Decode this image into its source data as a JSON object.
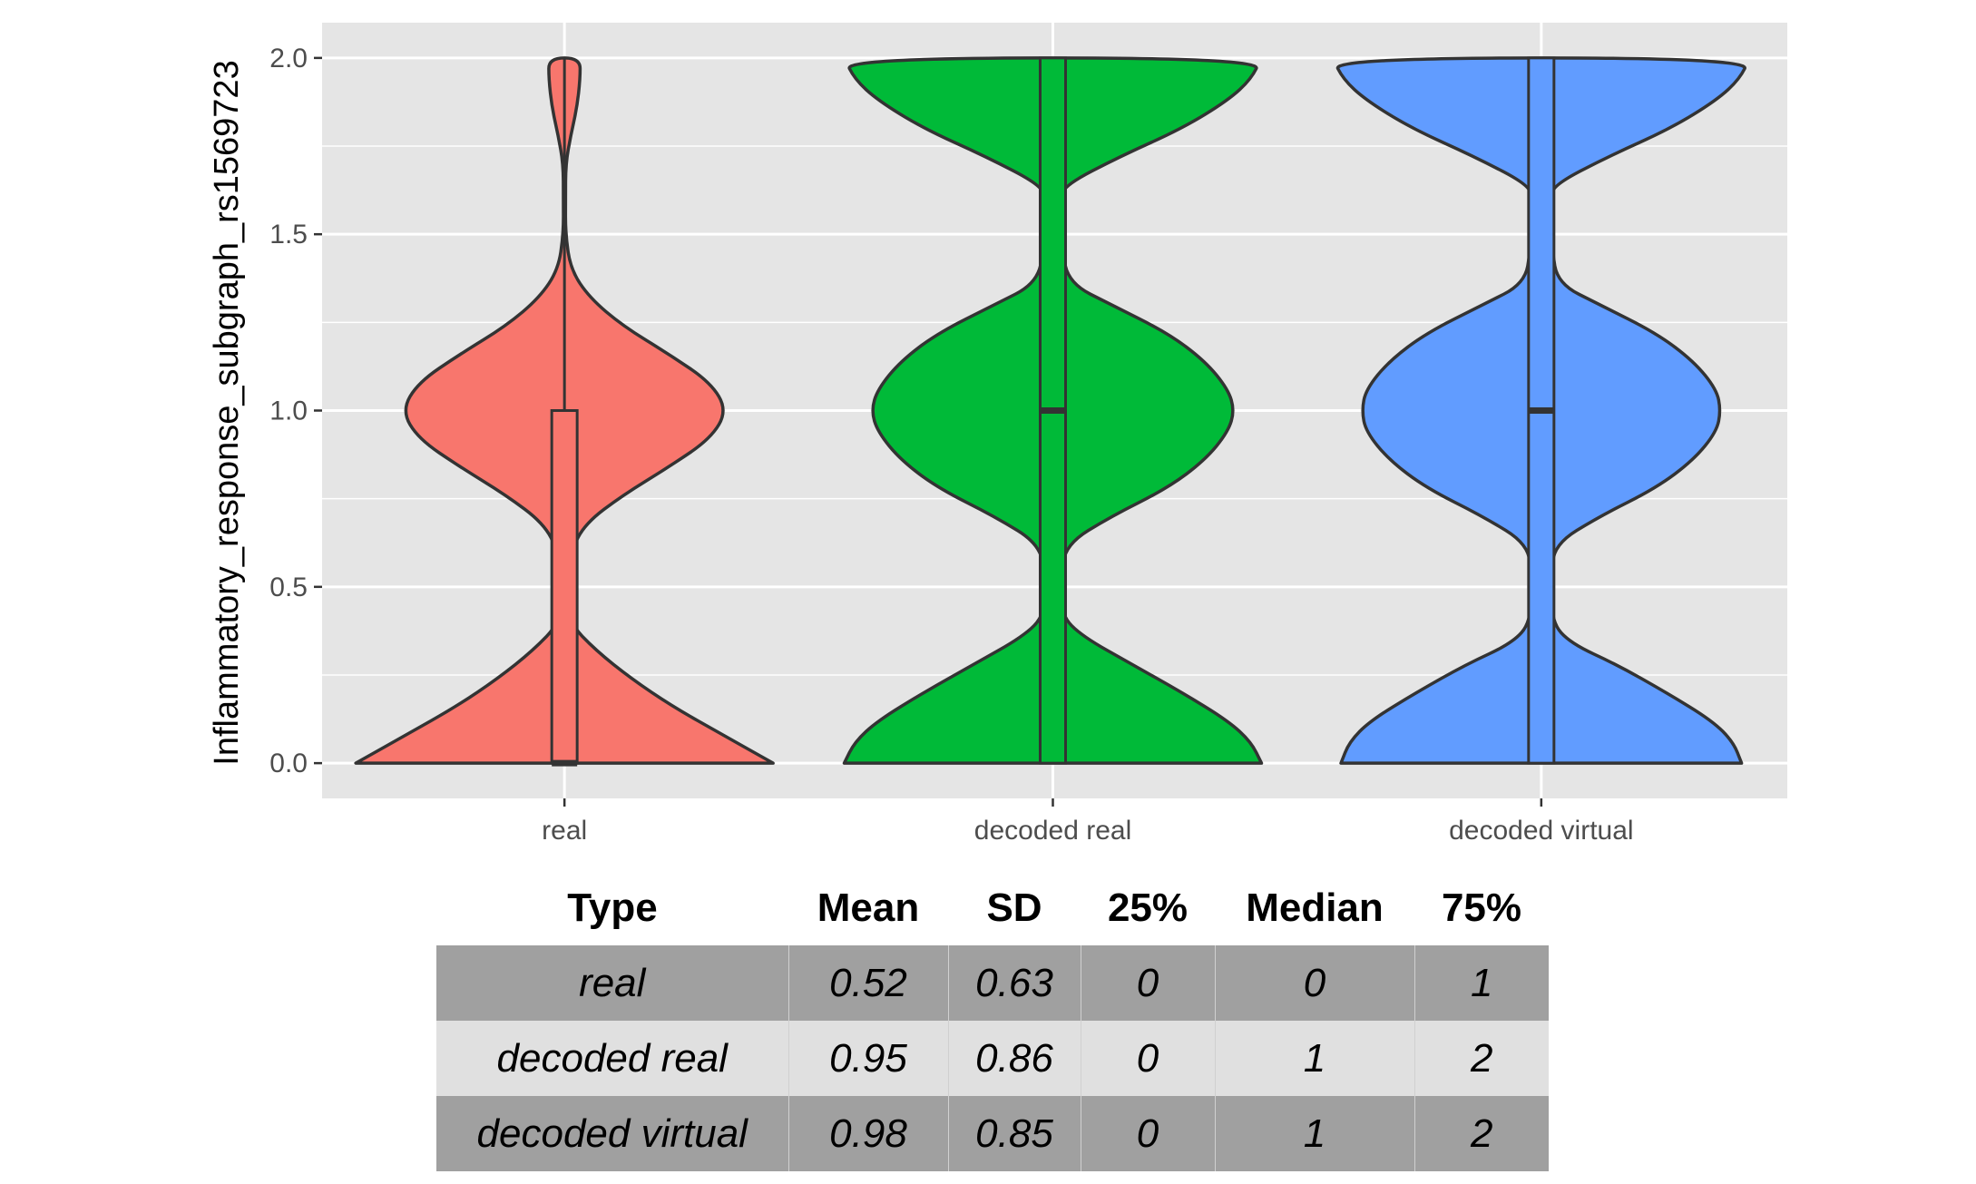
{
  "chart_data": {
    "type": "violin",
    "ylabel": "Inflammatory_response_subgraph_rs1569723",
    "xlabel": "",
    "ylim": [
      -0.1,
      2.1
    ],
    "yticks": [
      "0.0",
      "0.5",
      "1.0",
      "1.5",
      "2.0"
    ],
    "grid": true,
    "legend": "none",
    "categories": [
      "real",
      "decoded real",
      "decoded virtual"
    ],
    "series": [
      {
        "category": "real",
        "color": "#F8766D",
        "density_profile": [
          [
            0.0,
            1.0
          ],
          [
            0.08,
            0.76
          ],
          [
            0.16,
            0.52
          ],
          [
            0.24,
            0.32
          ],
          [
            0.32,
            0.15
          ],
          [
            0.4,
            0.02
          ],
          [
            0.5,
            0.02
          ],
          [
            0.6,
            0.03
          ],
          [
            0.68,
            0.1
          ],
          [
            0.76,
            0.28
          ],
          [
            0.84,
            0.5
          ],
          [
            0.92,
            0.7
          ],
          [
            1.0,
            0.78
          ],
          [
            1.08,
            0.7
          ],
          [
            1.16,
            0.5
          ],
          [
            1.24,
            0.28
          ],
          [
            1.32,
            0.12
          ],
          [
            1.4,
            0.03
          ],
          [
            1.5,
            0.005
          ],
          [
            1.6,
            0.005
          ],
          [
            1.7,
            0.006
          ],
          [
            1.78,
            0.03
          ],
          [
            1.86,
            0.06
          ],
          [
            1.94,
            0.075
          ],
          [
            2.0,
            0.075
          ]
        ],
        "box": {
          "q1": 0,
          "median": 0,
          "q3": 1,
          "whisker_low": 0,
          "whisker_high": 2
        }
      },
      {
        "category": "decoded real",
        "color": "#00BA38",
        "density_profile": [
          [
            0.0,
            1.0
          ],
          [
            0.06,
            0.95
          ],
          [
            0.12,
            0.84
          ],
          [
            0.2,
            0.62
          ],
          [
            0.28,
            0.38
          ],
          [
            0.36,
            0.14
          ],
          [
            0.42,
            0.04
          ],
          [
            0.52,
            0.04
          ],
          [
            0.62,
            0.06
          ],
          [
            0.7,
            0.28
          ],
          [
            0.78,
            0.55
          ],
          [
            0.86,
            0.73
          ],
          [
            0.94,
            0.84
          ],
          [
            1.0,
            0.87
          ],
          [
            1.06,
            0.84
          ],
          [
            1.14,
            0.73
          ],
          [
            1.22,
            0.55
          ],
          [
            1.3,
            0.28
          ],
          [
            1.36,
            0.08
          ],
          [
            1.46,
            0.04
          ],
          [
            1.6,
            0.04
          ],
          [
            1.64,
            0.06
          ],
          [
            1.72,
            0.32
          ],
          [
            1.8,
            0.62
          ],
          [
            1.88,
            0.84
          ],
          [
            1.94,
            0.95
          ],
          [
            2.0,
            1.0
          ]
        ],
        "box": {
          "q1": 0,
          "median": 1,
          "q3": 2,
          "whisker_low": 0,
          "whisker_high": 2
        }
      },
      {
        "category": "decoded virtual",
        "color": "#619CFF",
        "density_profile": [
          [
            0.0,
            0.96
          ],
          [
            0.06,
            0.92
          ],
          [
            0.12,
            0.82
          ],
          [
            0.2,
            0.6
          ],
          [
            0.28,
            0.36
          ],
          [
            0.34,
            0.14
          ],
          [
            0.4,
            0.05
          ],
          [
            0.52,
            0.05
          ],
          [
            0.62,
            0.06
          ],
          [
            0.7,
            0.28
          ],
          [
            0.78,
            0.55
          ],
          [
            0.86,
            0.73
          ],
          [
            0.94,
            0.84
          ],
          [
            1.0,
            0.86
          ],
          [
            1.06,
            0.84
          ],
          [
            1.14,
            0.73
          ],
          [
            1.22,
            0.55
          ],
          [
            1.3,
            0.28
          ],
          [
            1.36,
            0.08
          ],
          [
            1.46,
            0.05
          ],
          [
            1.6,
            0.05
          ],
          [
            1.64,
            0.06
          ],
          [
            1.72,
            0.32
          ],
          [
            1.8,
            0.62
          ],
          [
            1.88,
            0.84
          ],
          [
            1.94,
            0.95
          ],
          [
            2.0,
            1.0
          ]
        ],
        "box": {
          "q1": 0,
          "median": 1,
          "q3": 2,
          "whisker_low": 0,
          "whisker_high": 2
        }
      }
    ]
  },
  "stats_table": {
    "headers": [
      "Type",
      "Mean",
      "SD",
      "25%",
      "Median",
      "75%"
    ],
    "rows": [
      [
        "real",
        "0.52",
        "0.63",
        "0",
        "0",
        "1"
      ],
      [
        "decoded real",
        "0.95",
        "0.86",
        "0",
        "1",
        "2"
      ],
      [
        "decoded virtual",
        "0.98",
        "0.85",
        "0",
        "1",
        "2"
      ]
    ]
  },
  "colors": {
    "panel_background": "#E5E5E5",
    "grid": "#FFFFFF",
    "outline": "#333333",
    "table_dark_row": "#A0A0A0",
    "table_light_row": "#E0E0E0"
  }
}
